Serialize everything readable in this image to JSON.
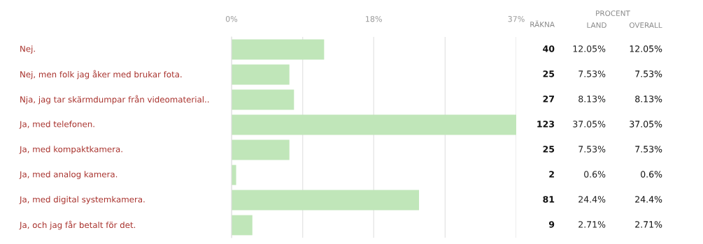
{
  "chart_data": {
    "type": "bar",
    "orientation": "horizontal",
    "categories": [
      "Nej.",
      "Nej, men folk jag åker med brukar fota.",
      "Nja, jag tar skärmdumpar från videomaterial..",
      "Ja, med telefonen.",
      "Ja, med kompaktkamera.",
      "Ja, med analog kamera.",
      "Ja, med digital systemkamera.",
      "Ja, och jag får betalt för det."
    ],
    "series": [
      {
        "color": "#c0e6b9",
        "values": [
          12.05,
          7.53,
          8.13,
          37.05,
          7.53,
          0.6,
          24.4,
          2.71
        ],
        "value_labels": [
          "12.05%",
          "7.53%",
          "8.13%",
          "37.05%",
          "7.53%",
          "0.6%",
          "24.4%",
          "2.71%"
        ]
      }
    ],
    "xlim": [
      0,
      37.05
    ],
    "xticks": [
      {
        "value": 0,
        "label": "0%"
      },
      {
        "value": 9.26,
        "label": null
      },
      {
        "value": 18.5,
        "label": "18%"
      },
      {
        "value": 27.8,
        "label": null
      },
      {
        "value": 37.05,
        "label": "37%"
      }
    ],
    "grid": "x",
    "annotations": [
      "RÄKNA",
      "PROCENT",
      "LAND",
      "OVERALL",
      "40",
      "12.05%",
      "25",
      "7.53%",
      "27",
      "8.13%",
      "123",
      "37.05%",
      "25",
      "7.53%",
      "2",
      "0.6%",
      "81",
      "24.4%",
      "9",
      "2.71%"
    ]
  }
}
